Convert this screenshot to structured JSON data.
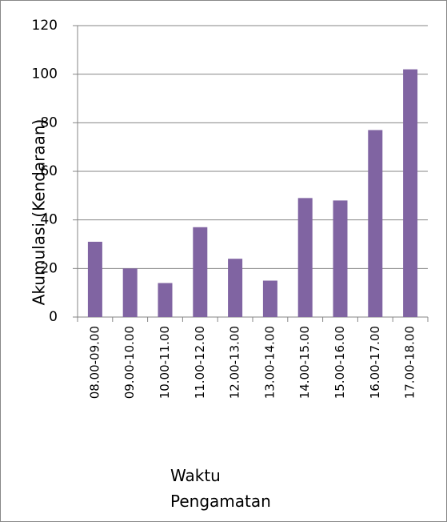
{
  "chart_data": {
    "type": "bar",
    "y_label": "Akumulasi (Kendaraan)",
    "x_label": "Waktu Pengamatan",
    "categories": [
      "08.00-09.00",
      "09.00-10.00",
      "10.00-11.00",
      "11.00-12.00",
      "12.00-13.00",
      "13.00-14.00",
      "14.00-15.00",
      "15.00-16.00",
      "16.00-17.00",
      "17.00-18.00"
    ],
    "values": [
      31,
      20,
      14,
      37,
      24,
      15,
      49,
      48,
      77,
      102
    ],
    "color": "#8064a2",
    "ylim": [
      0,
      120
    ],
    "yticks": [
      0,
      20,
      40,
      60,
      80,
      100,
      120
    ],
    "grid": true
  }
}
